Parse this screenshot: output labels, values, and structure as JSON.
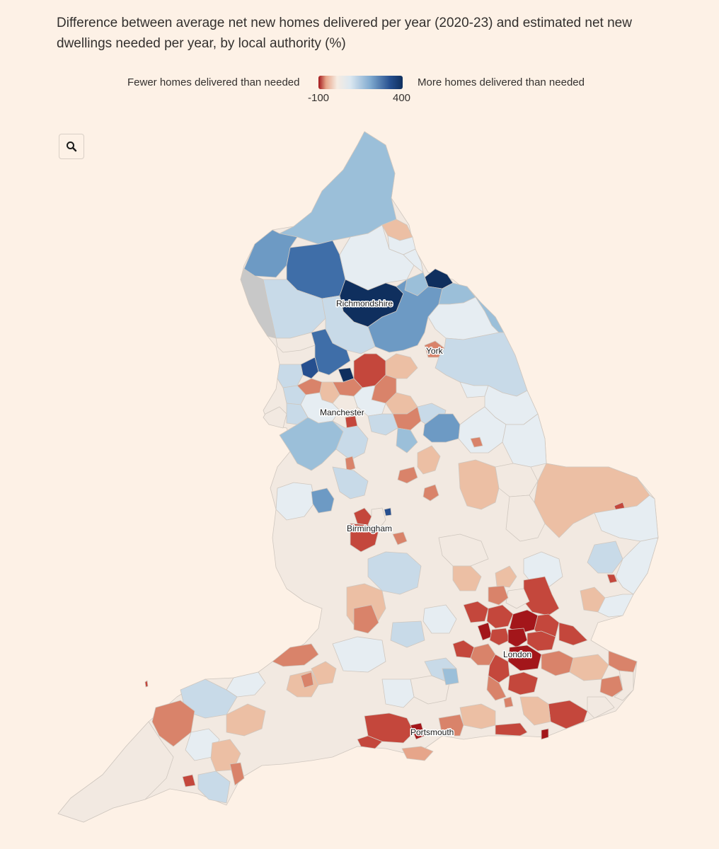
{
  "title": "Difference between average net new homes delivered per year (2020-23) and estimated net new dwellings needed per year, by local authority (%)",
  "legend": {
    "left_label": "Fewer homes delivered than needed",
    "right_label": "More homes delivered than needed",
    "min": "-100",
    "max": "400",
    "colors": [
      "#a3161a",
      "#e7a58a",
      "#f6ece2",
      "#dbe7f0",
      "#7fa9cf",
      "#264f8f",
      "#0f2f5e"
    ]
  },
  "zoom_button": {
    "icon": "search-icon"
  },
  "map": {
    "region": "England",
    "labels": {
      "richmondshire": "Richmondshire",
      "york": "York",
      "manchester": "Manchester",
      "birmingham": "Birmingham",
      "london": "London",
      "portsmouth": "Portsmouth"
    },
    "colors": {
      "deep_red": "#a3161a",
      "red": "#c4473c",
      "orange": "#d9836a",
      "light_orange": "#ecbfa4",
      "neutral": "#f2e9e1",
      "pale_blue": "#e6edf2",
      "light_blue": "#c8dae8",
      "blue": "#9bbfd9",
      "mid_blue": "#6d9ac4",
      "dark_blue": "#3f6ea8",
      "navy": "#0f2f5e",
      "no_data": "#c8c8c8"
    }
  }
}
